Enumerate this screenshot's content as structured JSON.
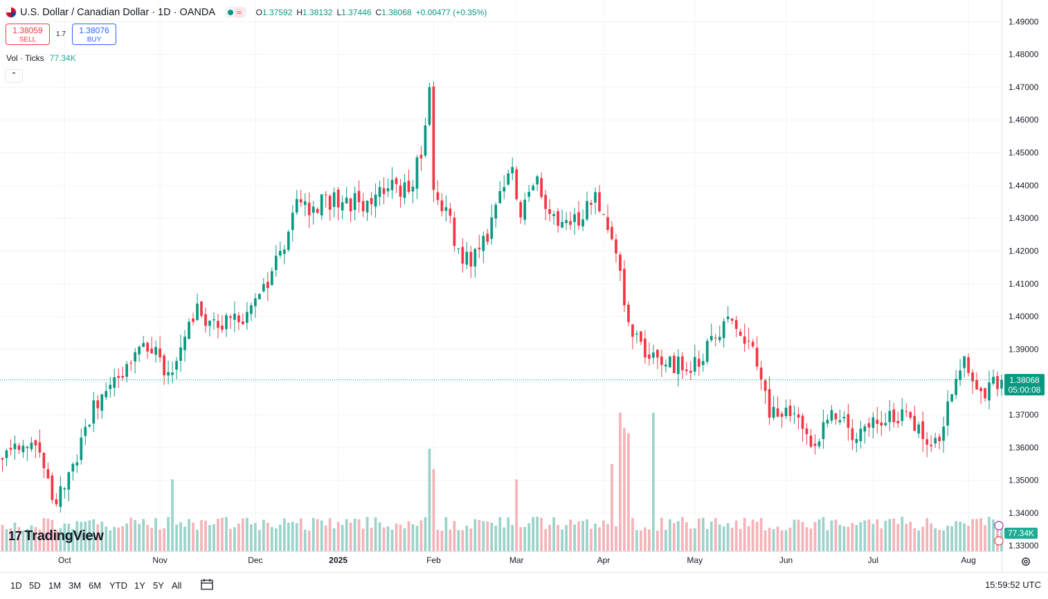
{
  "header": {
    "title": "U.S. Dollar / Canadian Dollar · 1D · OANDA",
    "open_label": "O",
    "open": "1.37592",
    "high_label": "H",
    "high": "1.38132",
    "low_label": "L",
    "low": "1.37446",
    "close_label": "C",
    "close": "1.38068",
    "change": "+0.00477 (+0.35%)"
  },
  "trade": {
    "sell_price": "1.38059",
    "sell_label": "SELL",
    "spread": "1.7",
    "buy_price": "1.38076",
    "buy_label": "BUY"
  },
  "volume_legend": {
    "label": "Vol · Ticks",
    "value": "77.34K"
  },
  "logo_text": "TradingView",
  "price_tag": {
    "price": "1.38068",
    "countdown": "05:00:08"
  },
  "volume_tag": "77.34K",
  "timeframes": [
    "1D",
    "5D",
    "1M",
    "3M",
    "6M",
    "YTD",
    "1Y",
    "5Y",
    "All"
  ],
  "clock": "15:59:52 UTC",
  "colors": {
    "up": "#089981",
    "down": "#f23645",
    "vol_up": "#9bd3ca",
    "vol_down": "#f4b3b8",
    "grid": "#f0f3fa"
  },
  "chart_data": {
    "type": "candlestick",
    "title": "U.S. Dollar / Canadian Dollar · 1D · OANDA",
    "ylim": [
      1.3295,
      1.4935
    ],
    "y_ticks": [
      "1.49000",
      "1.48000",
      "1.47000",
      "1.46000",
      "1.45000",
      "1.44000",
      "1.43000",
      "1.42000",
      "1.41000",
      "1.40000",
      "1.39000",
      "1.38000",
      "1.37000",
      "1.36000",
      "1.35000",
      "1.34000",
      "1.33000"
    ],
    "x_labels": [
      "Oct",
      "Nov",
      "Dec",
      "2025",
      "Feb",
      "Mar",
      "Apr",
      "May",
      "Jun",
      "Jul",
      "Aug"
    ],
    "x_label_session_index": [
      15,
      38,
      61,
      81,
      104,
      124,
      145,
      167,
      189,
      210,
      233
    ],
    "sessions_visible": 242,
    "close_path": [
      [
        0,
        1.358
      ],
      [
        9,
        1.361
      ],
      [
        12,
        1.342
      ],
      [
        17,
        1.352
      ],
      [
        22,
        1.373
      ],
      [
        27,
        1.379
      ],
      [
        35,
        1.392
      ],
      [
        40,
        1.382
      ],
      [
        47,
        1.401
      ],
      [
        53,
        1.398
      ],
      [
        58,
        1.399
      ],
      [
        63,
        1.409
      ],
      [
        68,
        1.42
      ],
      [
        71,
        1.438
      ],
      [
        74,
        1.433
      ],
      [
        80,
        1.436
      ],
      [
        84,
        1.435
      ],
      [
        89,
        1.434
      ],
      [
        93,
        1.44
      ],
      [
        98,
        1.439
      ],
      [
        101,
        1.449
      ],
      [
        103,
        1.472
      ],
      [
        104,
        1.439
      ],
      [
        107,
        1.431
      ],
      [
        111,
        1.418
      ],
      [
        115,
        1.418
      ],
      [
        118,
        1.429
      ],
      [
        123,
        1.446
      ],
      [
        125,
        1.43
      ],
      [
        129,
        1.442
      ],
      [
        133,
        1.429
      ],
      [
        139,
        1.43
      ],
      [
        143,
        1.438
      ],
      [
        147,
        1.425
      ],
      [
        149,
        1.411
      ],
      [
        152,
        1.396
      ],
      [
        156,
        1.387
      ],
      [
        160,
        1.387
      ],
      [
        166,
        1.383
      ],
      [
        170,
        1.391
      ],
      [
        175,
        1.4
      ],
      [
        181,
        1.388
      ],
      [
        185,
        1.372
      ],
      [
        190,
        1.371
      ],
      [
        195,
        1.359
      ],
      [
        200,
        1.372
      ],
      [
        205,
        1.363
      ],
      [
        211,
        1.368
      ],
      [
        217,
        1.37
      ],
      [
        222,
        1.365
      ],
      [
        225,
        1.36
      ],
      [
        229,
        1.376
      ],
      [
        232,
        1.386
      ],
      [
        236,
        1.377
      ],
      [
        241,
        1.38068
      ]
    ],
    "last_close": 1.38068,
    "volume_ticks_last": "77.34K",
    "volume_spikes_k": [
      [
        41,
        140
      ],
      [
        103,
        200
      ],
      [
        104,
        160
      ],
      [
        124,
        140
      ],
      [
        147,
        170
      ],
      [
        149,
        270
      ],
      [
        150,
        240
      ],
      [
        151,
        230
      ],
      [
        157,
        270
      ]
    ]
  }
}
